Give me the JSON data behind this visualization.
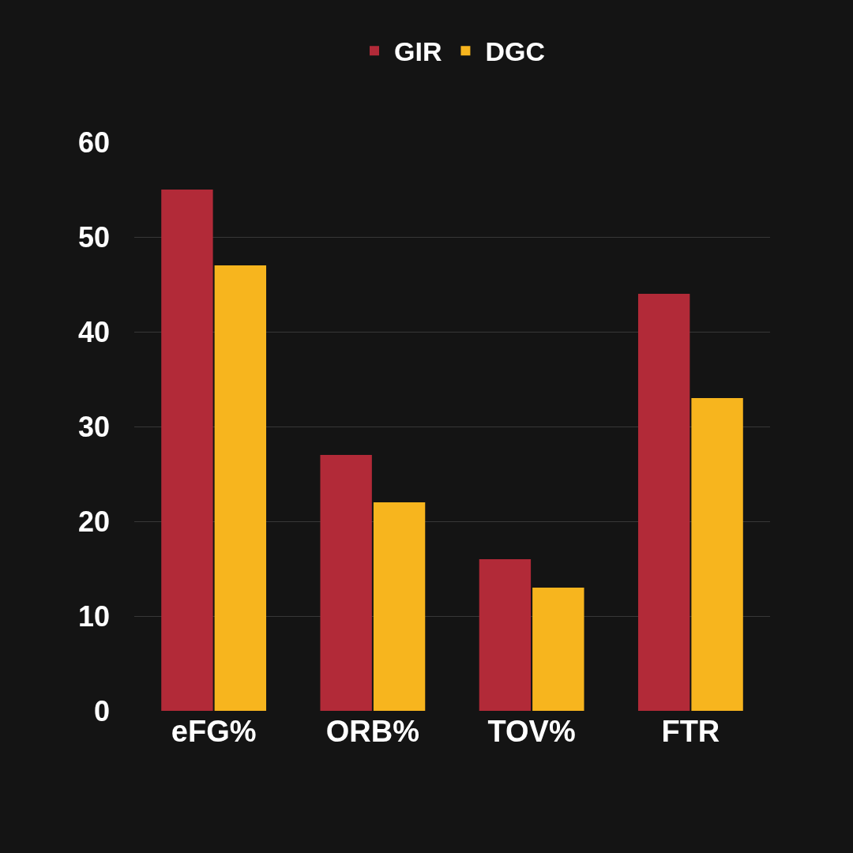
{
  "chart_data": {
    "type": "bar",
    "categories": [
      "eFG%",
      "ORB%",
      "TOV%",
      "FTR"
    ],
    "series": [
      {
        "name": "GIR",
        "color": "#b22a38",
        "values": [
          55,
          27,
          16,
          44
        ]
      },
      {
        "name": "DGC",
        "color": "#f7b51e",
        "values": [
          47,
          22,
          13,
          33
        ]
      }
    ],
    "ylim": [
      0,
      60
    ],
    "yticks": [
      0,
      10,
      20,
      30,
      40,
      50,
      60
    ],
    "grid": "y",
    "legend": "top"
  }
}
